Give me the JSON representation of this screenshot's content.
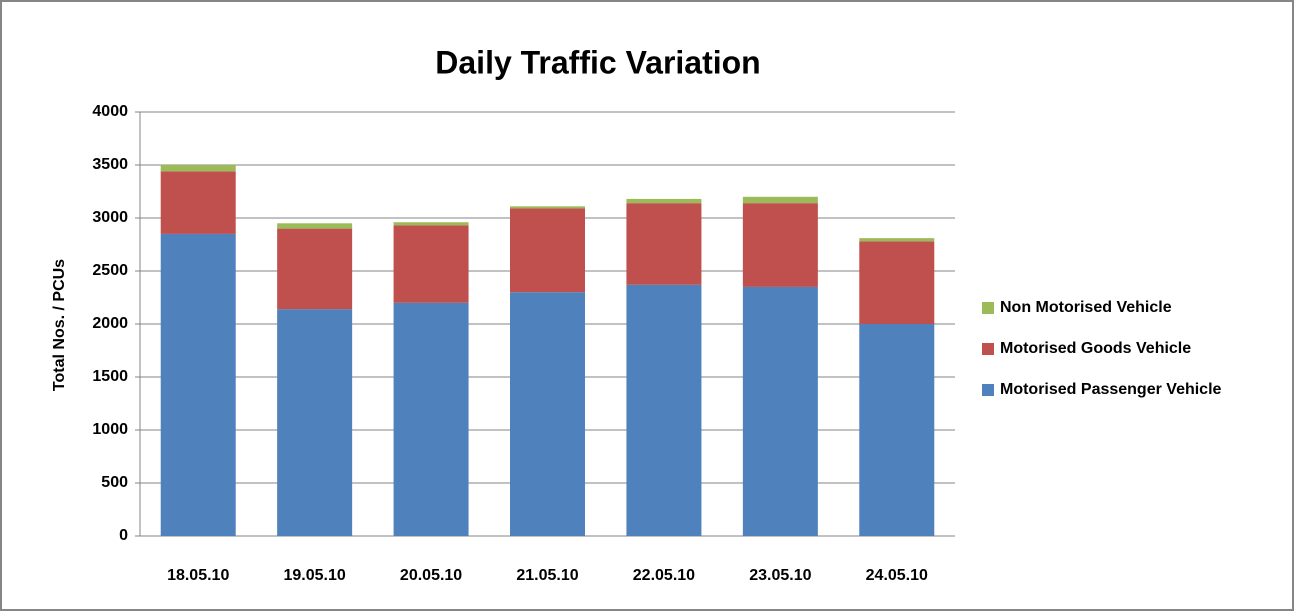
{
  "chart_data": {
    "type": "stacked_bar",
    "title": "Daily Traffic Variation",
    "ylabel": "Total Nos. / PCUs",
    "categories": [
      "18.05.10",
      "19.05.10",
      "20.05.10",
      "21.05.10",
      "22.05.10",
      "23.05.10",
      "24.05.10"
    ],
    "series": [
      {
        "name": "Motorised Passenger Vehicle",
        "color": "#4f81bd",
        "values": [
          2850,
          2140,
          2200,
          2300,
          2370,
          2350,
          2000
        ]
      },
      {
        "name": "Motorised Goods Vehicle",
        "color": "#c0504d",
        "values": [
          590,
          760,
          730,
          790,
          770,
          790,
          780
        ]
      },
      {
        "name": "Non Motorised Vehicle",
        "color": "#9bbb59",
        "values": [
          60,
          50,
          30,
          20,
          40,
          60,
          30
        ]
      }
    ],
    "ylim": [
      0,
      4000
    ],
    "yticks": [
      0,
      500,
      1000,
      1500,
      2000,
      2500,
      3000,
      3500,
      4000
    ],
    "grid": true,
    "legend": "right"
  }
}
